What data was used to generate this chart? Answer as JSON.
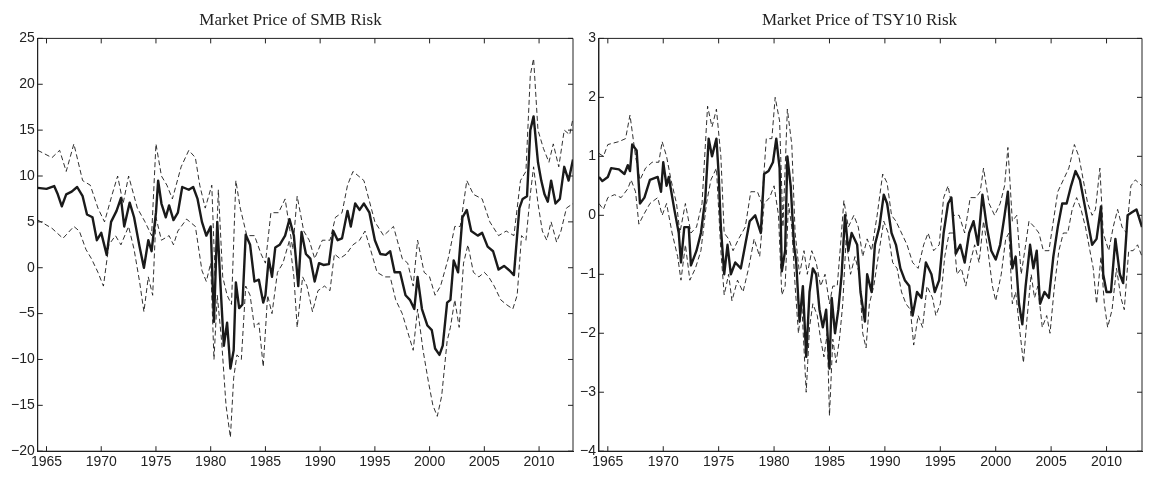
{
  "chart_data": [
    {
      "type": "line",
      "title": "Market Price of SMB Risk",
      "xlim": [
        1964.2,
        2013.1
      ],
      "xticks": [
        1965,
        1970,
        1975,
        1980,
        1985,
        1990,
        1995,
        2000,
        2005,
        2010
      ],
      "ylim": [
        -20,
        25
      ],
      "yticks": [
        -20,
        -15,
        -10,
        -5,
        0,
        5,
        10,
        15,
        20,
        25
      ],
      "grid": false,
      "legend": false,
      "series": [
        {
          "color": "#1a1a1a",
          "line_style": "solid",
          "x": [
            1964.2,
            1965.0,
            1965.7,
            1966.0,
            1966.4,
            1966.8,
            1967.3,
            1967.8,
            1968.3,
            1968.7,
            1969.2,
            1969.6,
            1970.0,
            1970.5,
            1970.9,
            1971.4,
            1971.8,
            1972.1,
            1972.6,
            1973.0,
            1973.5,
            1973.9,
            1974.3,
            1974.6,
            1975.0,
            1975.2,
            1975.5,
            1975.9,
            1976.2,
            1976.6,
            1977.0,
            1977.4,
            1978.0,
            1978.4,
            1978.8,
            1979.2,
            1979.6,
            1980.0,
            1980.3,
            1980.6,
            1980.9,
            1981.2,
            1981.5,
            1981.8,
            1982.1,
            1982.3,
            1982.6,
            1982.9,
            1983.2,
            1983.6,
            1984.0,
            1984.4,
            1984.8,
            1985.0,
            1985.3,
            1985.6,
            1985.9,
            1986.3,
            1986.8,
            1987.2,
            1987.6,
            1988.0,
            1988.3,
            1988.7,
            1989.1,
            1989.5,
            1989.9,
            1990.3,
            1990.8,
            1991.2,
            1991.6,
            1992.0,
            1992.5,
            1992.8,
            1993.2,
            1993.6,
            1994.0,
            1994.5,
            1995.0,
            1995.5,
            1996.0,
            1996.4,
            1996.8,
            1997.3,
            1997.8,
            1998.2,
            1998.6,
            1998.9,
            1999.3,
            1999.8,
            2000.2,
            2000.5,
            2000.9,
            2001.2,
            2001.6,
            2001.9,
            2002.2,
            2002.6,
            2003.0,
            2003.4,
            2003.8,
            2004.4,
            2004.8,
            2005.3,
            2005.8,
            2006.3,
            2006.8,
            2007.3,
            2007.7,
            2008.2,
            2008.5,
            2008.9,
            2009.2,
            2009.5,
            2009.9,
            2010.2,
            2010.5,
            2010.8,
            2011.1,
            2011.5,
            2011.9,
            2012.3,
            2012.7,
            2013.1
          ],
          "values": [
            8.7,
            8.6,
            8.9,
            8.1,
            6.7,
            8.0,
            8.3,
            8.8,
            7.8,
            5.8,
            5.5,
            3.0,
            3.8,
            1.4,
            5.0,
            6.2,
            7.6,
            4.5,
            7.1,
            5.5,
            2.3,
            0.0,
            3.0,
            1.8,
            6.0,
            9.5,
            7.0,
            5.5,
            6.8,
            5.2,
            6.0,
            8.8,
            8.5,
            8.8,
            7.5,
            5.0,
            3.5,
            4.5,
            -5.9,
            5.0,
            -2.0,
            -8.5,
            -6.0,
            -11.0,
            -9.0,
            -1.6,
            -4.4,
            -4.0,
            3.6,
            2.5,
            -1.5,
            -1.3,
            -3.8,
            -3.0,
            1.0,
            -1.0,
            2.2,
            2.5,
            3.5,
            5.3,
            3.5,
            -2.0,
            3.9,
            1.5,
            1.0,
            -1.5,
            0.5,
            0.3,
            0.4,
            4.0,
            3.0,
            3.2,
            6.2,
            4.5,
            7.0,
            6.3,
            7.0,
            6.0,
            3.0,
            1.5,
            1.4,
            1.8,
            -0.5,
            -0.5,
            -3.0,
            -3.5,
            -4.5,
            -1.0,
            -4.5,
            -6.3,
            -6.8,
            -8.8,
            -9.5,
            -8.5,
            -3.8,
            -3.5,
            0.8,
            -0.5,
            5.5,
            6.3,
            4.0,
            3.5,
            3.8,
            2.3,
            1.8,
            -0.2,
            0.2,
            -0.3,
            -0.8,
            6.5,
            7.5,
            7.8,
            15.0,
            16.5,
            11.5,
            9.5,
            8.0,
            7.2,
            9.5,
            7.0,
            7.5,
            11.0,
            9.5,
            11.8
          ]
        },
        {
          "color": "#1a1a1a",
          "line_style": "dashed",
          "x": [
            1964.2,
            1965.5,
            1966.2,
            1966.8,
            1967.5,
            1968.3,
            1969.0,
            1969.7,
            1970.3,
            1971.0,
            1971.5,
            1972.0,
            1972.5,
            1973.3,
            1974.0,
            1974.6,
            1975.0,
            1975.5,
            1976.0,
            1976.5,
            1977.3,
            1978.0,
            1978.6,
            1979.0,
            1979.5,
            1980.1,
            1980.4,
            1980.7,
            1981.1,
            1981.5,
            1981.9,
            1982.3,
            1982.7,
            1983.3,
            1984.0,
            1984.6,
            1985.0,
            1985.5,
            1986.2,
            1986.8,
            1987.5,
            1987.9,
            1988.5,
            1989.0,
            1989.5,
            1990.2,
            1990.9,
            1991.4,
            1992.0,
            1992.5,
            1993.0,
            1994.0,
            1995.0,
            1995.8,
            1996.7,
            1997.5,
            1998.0,
            1998.5,
            1998.9,
            1999.5,
            2000.0,
            2000.5,
            2001.0,
            2001.7,
            2002.3,
            2002.8,
            2003.4,
            2004.0,
            2004.8,
            2005.5,
            2006.3,
            2007.0,
            2007.7,
            2008.3,
            2008.8,
            2009.2,
            2009.5,
            2009.9,
            2010.4,
            2010.9,
            2011.3,
            2011.8,
            2012.3,
            2012.8,
            2013.1
          ],
          "values": [
            12.8,
            12.0,
            12.8,
            10.5,
            13.5,
            9.5,
            9.0,
            6.5,
            5.0,
            8.0,
            10.0,
            7.0,
            10.0,
            6.5,
            5.0,
            3.5,
            13.5,
            10.0,
            9.0,
            7.5,
            11.0,
            12.8,
            12.0,
            9.0,
            6.5,
            9.0,
            -1.0,
            8.5,
            -1.0,
            -3.0,
            -4.0,
            9.5,
            6.5,
            3.5,
            3.5,
            1.5,
            0.5,
            6.0,
            6.0,
            7.5,
            2.0,
            7.8,
            4.0,
            3.0,
            1.0,
            3.0,
            3.0,
            5.5,
            6.0,
            9.0,
            10.5,
            9.5,
            5.0,
            3.5,
            4.5,
            1.0,
            0.5,
            -2.0,
            3.0,
            -0.5,
            -1.0,
            -3.0,
            -2.0,
            1.0,
            4.5,
            4.5,
            9.5,
            8.0,
            7.5,
            5.0,
            3.5,
            4.0,
            3.5,
            9.5,
            10.5,
            21.0,
            22.8,
            15.0,
            13.0,
            11.5,
            13.5,
            11.0,
            15.0,
            14.5,
            16.3
          ]
        },
        {
          "color": "#1a1a1a",
          "line_style": "dashed",
          "x": [
            1964.2,
            1965.5,
            1966.5,
            1967.5,
            1968.0,
            1968.6,
            1969.1,
            1969.7,
            1970.2,
            1970.7,
            1971.3,
            1971.8,
            1972.5,
            1973.0,
            1973.5,
            1973.9,
            1974.3,
            1974.7,
            1975.0,
            1975.5,
            1976.2,
            1976.6,
            1977.0,
            1977.8,
            1978.6,
            1979.2,
            1979.6,
            1980.0,
            1980.3,
            1980.6,
            1981.0,
            1981.4,
            1981.8,
            1982.1,
            1982.4,
            1982.8,
            1983.2,
            1983.6,
            1984.0,
            1984.4,
            1984.8,
            1985.2,
            1985.6,
            1986.1,
            1986.6,
            1987.2,
            1987.6,
            1987.9,
            1988.4,
            1988.8,
            1989.3,
            1989.8,
            1990.4,
            1990.9,
            1991.3,
            1991.8,
            1992.4,
            1993.0,
            1993.6,
            1994.1,
            1994.6,
            1995.2,
            1995.9,
            1996.4,
            1996.9,
            1997.5,
            1998.0,
            1998.5,
            1998.9,
            1999.4,
            1999.9,
            2000.3,
            2000.7,
            2001.1,
            2001.6,
            2001.9,
            2002.3,
            2002.7,
            2003.1,
            2003.5,
            2004.0,
            2004.5,
            2005.0,
            2005.4,
            2005.9,
            2006.5,
            2007.0,
            2007.6,
            2008.0,
            2008.4,
            2008.8,
            2009.2,
            2009.5,
            2009.9,
            2010.3,
            2010.7,
            2011.1,
            2011.6,
            2012.0,
            2012.5,
            2013.1
          ],
          "values": [
            5.2,
            4.3,
            3.2,
            4.5,
            4.0,
            2.0,
            1.0,
            -0.5,
            -2.0,
            2.5,
            3.5,
            2.5,
            4.5,
            2.0,
            -1.5,
            -4.8,
            -1.0,
            -3.0,
            5.5,
            3.0,
            3.5,
            2.5,
            4.0,
            5.3,
            4.5,
            -0.3,
            -1.5,
            0.5,
            -10.0,
            -3.0,
            -8.0,
            -15.0,
            -18.5,
            -12.0,
            -9.5,
            -10.0,
            -2.0,
            -3.0,
            -6.5,
            -6.0,
            -10.8,
            -3.0,
            -5.0,
            -0.5,
            0.5,
            3.0,
            -1.0,
            -6.5,
            -1.0,
            -2.0,
            -4.8,
            -2.5,
            -2.0,
            -2.5,
            1.5,
            1.0,
            1.5,
            2.5,
            3.0,
            4.0,
            2.0,
            -0.5,
            -1.0,
            -1.0,
            -3.5,
            -5.0,
            -7.0,
            -9.0,
            -4.5,
            -9.0,
            -12.5,
            -15.0,
            -16.2,
            -14.0,
            -8.0,
            -6.5,
            -3.5,
            -6.5,
            0.5,
            2.5,
            -0.5,
            -1.0,
            -0.5,
            -1.0,
            -2.0,
            -3.5,
            -4.0,
            -4.5,
            -3.0,
            3.5,
            3.0,
            8.0,
            11.0,
            7.0,
            4.0,
            3.0,
            5.0,
            2.8,
            4.0,
            6.5,
            7.0
          ]
        }
      ]
    },
    {
      "type": "line",
      "title": "Market Price of TSY10 Risk",
      "xlim": [
        1964.2,
        2013.2
      ],
      "xticks": [
        1965,
        1970,
        1975,
        1980,
        1985,
        1990,
        1995,
        2000,
        2005,
        2010
      ],
      "ylim": [
        -4,
        3
      ],
      "yticks": [
        -4,
        -3,
        -2,
        -1,
        0,
        1,
        2,
        3
      ],
      "grid": false,
      "legend": false,
      "series": [
        {
          "color": "#1a1a1a",
          "line_style": "solid",
          "x": [
            1964.2,
            1964.5,
            1965.0,
            1965.3,
            1966.0,
            1966.5,
            1966.8,
            1967.0,
            1967.2,
            1967.6,
            1967.9,
            1968.3,
            1968.8,
            1969.5,
            1969.8,
            1970.0,
            1970.3,
            1970.5,
            1971.0,
            1971.4,
            1971.6,
            1971.9,
            1972.3,
            1972.5,
            1973.0,
            1973.4,
            1973.8,
            1974.1,
            1974.4,
            1974.8,
            1975.0,
            1975.2,
            1975.5,
            1975.8,
            1976.1,
            1976.5,
            1977.0,
            1977.4,
            1977.8,
            1978.3,
            1978.8,
            1979.1,
            1979.5,
            1979.9,
            1980.2,
            1980.5,
            1980.7,
            1981.0,
            1981.2,
            1981.5,
            1981.8,
            1982.0,
            1982.3,
            1982.6,
            1982.9,
            1983.2,
            1983.5,
            1983.8,
            1984.1,
            1984.4,
            1984.7,
            1985.0,
            1985.2,
            1985.5,
            1985.8,
            1986.1,
            1986.4,
            1986.7,
            1987.0,
            1987.5,
            1987.8,
            1988.2,
            1988.4,
            1988.8,
            1989.1,
            1989.5,
            1989.9,
            1990.2,
            1990.6,
            1991.0,
            1991.4,
            1991.8,
            1992.2,
            1992.5,
            1992.9,
            1993.3,
            1993.7,
            1994.2,
            1994.5,
            1994.9,
            1995.3,
            1995.7,
            1996.0,
            1996.4,
            1996.8,
            1997.2,
            1997.6,
            1998.0,
            1998.4,
            1998.8,
            1999.2,
            1999.6,
            2000.0,
            2000.4,
            2000.8,
            2001.1,
            2001.5,
            2001.8,
            2002.1,
            2002.4,
            2002.7,
            2003.1,
            2003.4,
            2003.7,
            2004.0,
            2004.4,
            2004.8,
            2005.2,
            2005.6,
            2006.0,
            2006.4,
            2006.8,
            2007.2,
            2007.6,
            2008.0,
            2008.4,
            2008.7,
            2009.1,
            2009.5,
            2009.7,
            2010.0,
            2010.4,
            2010.8,
            2011.2,
            2011.5,
            2011.9,
            2012.3,
            2012.7,
            2013.2
          ],
          "values": [
            0.65,
            0.58,
            0.65,
            0.8,
            0.78,
            0.7,
            0.85,
            0.75,
            1.2,
            1.1,
            0.2,
            0.3,
            0.6,
            0.65,
            0.4,
            0.9,
            0.5,
            0.65,
            0.1,
            -0.3,
            -0.8,
            -0.2,
            -0.2,
            -0.85,
            -0.6,
            -0.3,
            0.3,
            1.3,
            1.0,
            1.3,
            0.7,
            -0.2,
            -1.0,
            -0.5,
            -1.0,
            -0.8,
            -0.9,
            -0.5,
            -0.1,
            0.0,
            -0.3,
            0.7,
            0.75,
            0.9,
            1.3,
            0.8,
            -0.95,
            -0.6,
            1.0,
            0.5,
            -0.5,
            -0.8,
            -1.8,
            -1.2,
            -2.4,
            -1.3,
            -0.9,
            -1.0,
            -1.6,
            -1.9,
            -1.6,
            -2.6,
            -1.4,
            -2.0,
            -1.6,
            -1.0,
            0.0,
            -0.6,
            -0.3,
            -0.5,
            -1.3,
            -1.8,
            -1.0,
            -1.3,
            -0.5,
            -0.2,
            0.35,
            0.2,
            -0.3,
            -0.5,
            -0.9,
            -1.1,
            -1.2,
            -1.7,
            -1.3,
            -1.4,
            -0.8,
            -1.0,
            -1.3,
            -1.1,
            -0.3,
            0.2,
            0.3,
            -0.65,
            -0.5,
            -0.8,
            -0.3,
            -0.1,
            -0.5,
            0.35,
            -0.2,
            -0.6,
            -0.75,
            -0.5,
            0.0,
            0.4,
            -0.9,
            -0.7,
            -1.5,
            -1.85,
            -1.2,
            -0.5,
            -0.9,
            -0.6,
            -1.5,
            -1.3,
            -1.4,
            -0.7,
            -0.2,
            0.2,
            0.2,
            0.5,
            0.75,
            0.6,
            0.2,
            -0.2,
            -0.5,
            -0.4,
            0.15,
            -1.0,
            -1.3,
            -1.3,
            -0.4,
            -1.0,
            -1.15,
            0.0,
            0.05,
            0.1,
            -0.2
          ]
        },
        {
          "color": "#1a1a1a",
          "line_style": "dashed",
          "x": [
            1964.2,
            1964.6,
            1965.0,
            1966.0,
            1966.6,
            1967.0,
            1967.5,
            1967.9,
            1968.4,
            1969.0,
            1969.6,
            1969.9,
            1970.3,
            1970.7,
            1971.2,
            1971.5,
            1972.0,
            1972.5,
            1973.0,
            1973.5,
            1974.0,
            1974.4,
            1974.8,
            1975.2,
            1975.5,
            1975.9,
            1976.3,
            1976.8,
            1977.4,
            1977.9,
            1978.5,
            1978.9,
            1979.3,
            1979.8,
            1980.1,
            1980.5,
            1980.8,
            1981.2,
            1981.6,
            1981.9,
            1982.3,
            1982.7,
            1983.0,
            1983.4,
            1983.8,
            1984.2,
            1984.6,
            1985.0,
            1985.3,
            1985.7,
            1986.0,
            1986.3,
            1986.7,
            1987.2,
            1987.6,
            1988.0,
            1988.4,
            1988.8,
            1989.3,
            1989.8,
            1990.2,
            1990.6,
            1991.0,
            1991.5,
            1992.0,
            1992.5,
            1993.0,
            1993.5,
            1993.9,
            1994.4,
            1994.9,
            1995.3,
            1995.7,
            1996.2,
            1996.7,
            1997.2,
            1997.7,
            1998.2,
            1998.6,
            1998.9,
            1999.4,
            1999.9,
            2000.4,
            2000.8,
            2001.1,
            2001.5,
            2001.9,
            2002.3,
            2002.7,
            2003.0,
            2003.5,
            2003.9,
            2004.3,
            2004.8,
            2005.2,
            2005.6,
            2006.1,
            2006.6,
            2007.1,
            2007.5,
            2008.0,
            2008.3,
            2008.7,
            2009.0,
            2009.4,
            2009.7,
            2010.2,
            2010.6,
            2011.0,
            2011.4,
            2011.8,
            2012.2,
            2012.6,
            2013.2
          ],
          "values": [
            1.05,
            1.0,
            1.2,
            1.25,
            1.3,
            1.7,
            1.0,
            0.6,
            0.8,
            0.9,
            0.9,
            1.25,
            1.0,
            0.6,
            0.2,
            -0.3,
            0.2,
            -0.3,
            -0.2,
            0.2,
            1.85,
            1.5,
            1.8,
            1.0,
            -0.3,
            -0.4,
            -0.6,
            -0.4,
            -0.2,
            0.4,
            0.4,
            0.2,
            1.3,
            1.3,
            2.0,
            1.6,
            -0.2,
            1.8,
            1.2,
            -0.3,
            -1.0,
            -0.6,
            -1.0,
            -0.6,
            -0.8,
            -1.2,
            -1.0,
            -1.5,
            -1.2,
            -1.2,
            -0.5,
            0.25,
            -0.2,
            0.0,
            -0.2,
            -0.7,
            -0.4,
            -0.6,
            0.0,
            0.7,
            0.55,
            0.0,
            -0.1,
            -0.3,
            -0.5,
            -0.8,
            -0.9,
            -0.5,
            -0.3,
            -0.6,
            -0.5,
            0.3,
            0.5,
            0.0,
            0.0,
            -0.3,
            0.3,
            0.3,
            0.4,
            0.8,
            0.2,
            0.0,
            0.2,
            0.5,
            1.15,
            -0.1,
            0.0,
            -1.0,
            -0.5,
            -0.1,
            -0.2,
            -0.3,
            -0.6,
            -0.6,
            -0.1,
            0.4,
            0.6,
            0.8,
            1.2,
            1.0,
            0.5,
            0.2,
            0.0,
            0.1,
            0.8,
            -0.3,
            -0.6,
            -0.2,
            0.1,
            -0.2,
            -0.3,
            0.5,
            0.6,
            0.5
          ]
        },
        {
          "color": "#1a1a1a",
          "line_style": "dashed",
          "x": [
            1964.2,
            1964.6,
            1965.0,
            1965.6,
            1966.2,
            1966.8,
            1967.1,
            1967.5,
            1967.8,
            1968.2,
            1968.8,
            1969.5,
            1969.9,
            1970.3,
            1970.8,
            1971.3,
            1971.6,
            1972.0,
            1972.4,
            1972.9,
            1973.4,
            1973.9,
            1974.3,
            1974.8,
            1975.2,
            1975.5,
            1975.9,
            1976.2,
            1976.7,
            1977.2,
            1977.7,
            1978.2,
            1978.7,
            1979.1,
            1979.6,
            1980.0,
            1980.4,
            1980.7,
            1981.0,
            1981.3,
            1981.6,
            1981.9,
            1982.2,
            1982.5,
            1982.9,
            1983.2,
            1983.5,
            1983.9,
            1984.2,
            1984.5,
            1984.8,
            1985.0,
            1985.3,
            1985.6,
            1985.9,
            1986.2,
            1986.5,
            1986.9,
            1987.3,
            1987.7,
            1988.0,
            1988.3,
            1988.6,
            1989.0,
            1989.4,
            1989.9,
            1990.3,
            1990.7,
            1991.1,
            1991.5,
            1991.9,
            1992.3,
            1992.6,
            1993.0,
            1993.4,
            1993.8,
            1994.3,
            1994.6,
            1995.0,
            1995.4,
            1995.8,
            1996.2,
            1996.5,
            1996.9,
            1997.3,
            1997.7,
            1998.1,
            1998.5,
            1998.9,
            1999.3,
            1999.7,
            2000.0,
            2000.5,
            2000.9,
            2001.2,
            2001.5,
            2001.8,
            2002.2,
            2002.5,
            2002.8,
            2003.2,
            2003.5,
            2003.8,
            2004.2,
            2004.6,
            2004.9,
            2005.3,
            2005.7,
            2006.1,
            2006.5,
            2006.9,
            2007.3,
            2007.7,
            2008.1,
            2008.5,
            2008.8,
            2009.1,
            2009.5,
            2009.8,
            2010.1,
            2010.5,
            2010.9,
            2011.3,
            2011.6,
            2012.0,
            2012.4,
            2012.8,
            2013.2
          ],
          "values": [
            0.2,
            0.1,
            0.3,
            0.35,
            0.3,
            0.45,
            0.6,
            0.4,
            -0.15,
            0.0,
            0.2,
            0.3,
            0.0,
            0.2,
            -0.3,
            -0.7,
            -1.1,
            -0.5,
            -1.1,
            -0.9,
            -0.6,
            0.2,
            0.6,
            0.8,
            -0.6,
            -1.35,
            -1.0,
            -1.45,
            -1.1,
            -1.3,
            -0.9,
            -0.4,
            -0.7,
            0.2,
            0.3,
            0.5,
            0.0,
            -1.35,
            -1.2,
            0.2,
            -0.2,
            -1.2,
            -2.0,
            -1.5,
            -3.0,
            -1.9,
            -1.5,
            -1.7,
            -2.1,
            -2.4,
            -2.0,
            -3.4,
            -2.1,
            -2.5,
            -2.1,
            -1.5,
            -0.4,
            -1.0,
            -0.7,
            -1.0,
            -2.0,
            -2.25,
            -1.5,
            -1.2,
            -0.7,
            -0.1,
            -0.3,
            -0.8,
            -0.9,
            -1.3,
            -1.5,
            -1.6,
            -2.2,
            -1.7,
            -1.9,
            -1.2,
            -1.4,
            -1.7,
            -1.5,
            -0.7,
            -0.3,
            -0.3,
            -1.0,
            -0.9,
            -1.2,
            -0.8,
            -0.5,
            -0.8,
            -0.1,
            -0.6,
            -1.2,
            -1.45,
            -1.0,
            -0.4,
            -0.3,
            -1.5,
            -1.3,
            -2.0,
            -2.5,
            -1.8,
            -1.0,
            -1.4,
            -1.2,
            -1.9,
            -1.7,
            -2.0,
            -1.2,
            -0.6,
            -0.3,
            -0.3,
            0.1,
            0.3,
            0.1,
            -0.2,
            -0.6,
            -0.9,
            -1.5,
            -0.7,
            -1.5,
            -1.9,
            -1.6,
            -0.9,
            -1.4,
            -1.6,
            -0.6,
            -0.6,
            -0.5,
            -0.7
          ]
        }
      ]
    }
  ]
}
